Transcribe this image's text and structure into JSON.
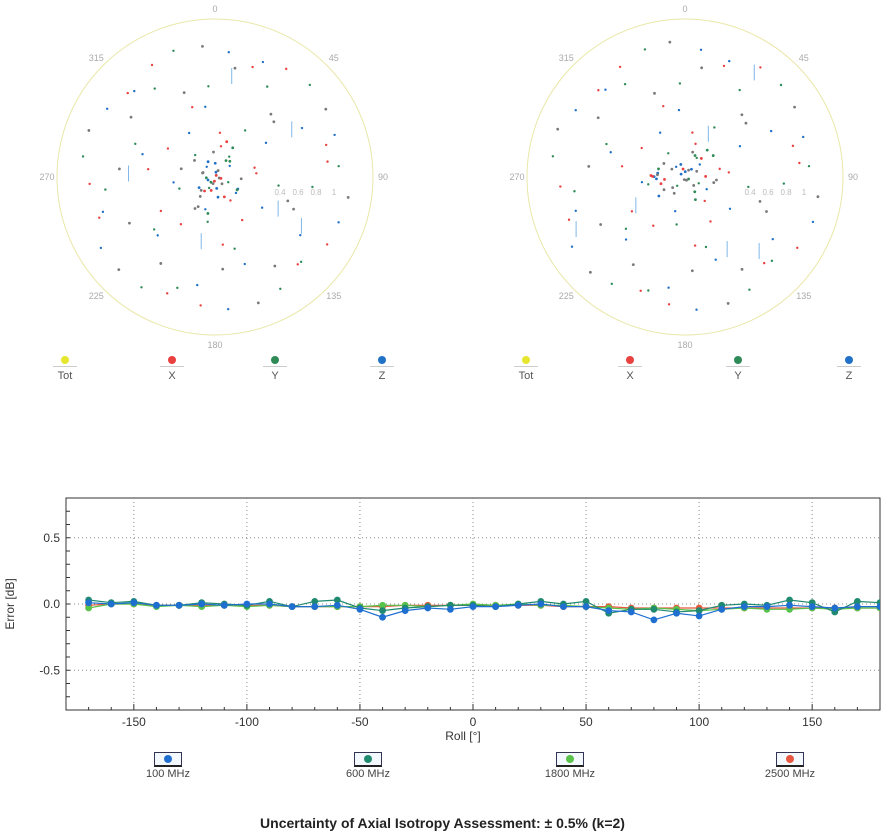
{
  "polar_left": {
    "angle_labels": [
      "0",
      "45",
      "90",
      "135",
      "180",
      "225",
      "270",
      "315"
    ],
    "radial_labels": [
      "0.4",
      "0.6",
      "0.8",
      "1"
    ]
  },
  "polar_right": {
    "angle_labels": [
      "0",
      "45",
      "90",
      "135",
      "180",
      "225",
      "270",
      "315"
    ],
    "radial_labels": [
      "0.4",
      "0.6",
      "0.8",
      "1"
    ]
  },
  "polar_legend": [
    {
      "label": "Tot",
      "color": "#e6e62e"
    },
    {
      "label": "X",
      "color": "#e8413f"
    },
    {
      "label": "Y",
      "color": "#2e8b57"
    },
    {
      "label": "Z",
      "color": "#2171c7"
    }
  ],
  "chart_data": {
    "type": "line",
    "xlabel": "Roll [°]",
    "ylabel": "Error [dB]",
    "xlim": [
      -180,
      180
    ],
    "ylim": [
      -0.8,
      0.8
    ],
    "xticks": [
      -150,
      -100,
      -50,
      0,
      50,
      100,
      150
    ],
    "yticks": [
      0.5,
      0.0,
      -0.5
    ],
    "ytick_labels": [
      "0.5",
      "0.0",
      "-0.5"
    ],
    "grid": true,
    "x": [
      -170,
      -160,
      -150,
      -140,
      -130,
      -120,
      -110,
      -100,
      -90,
      -80,
      -70,
      -60,
      -50,
      -40,
      -30,
      -20,
      -10,
      0,
      10,
      20,
      30,
      40,
      50,
      60,
      70,
      80,
      90,
      100,
      110,
      120,
      130,
      140,
      150,
      160,
      170,
      180
    ],
    "series": [
      {
        "name": "100 MHz",
        "color": "#1f6fd1",
        "values": [
          0.01,
          0.0,
          0.01,
          -0.01,
          -0.01,
          0.0,
          -0.01,
          0.0,
          0.0,
          -0.02,
          -0.02,
          -0.01,
          -0.04,
          -0.1,
          -0.05,
          -0.03,
          -0.04,
          -0.02,
          -0.02,
          -0.01,
          0.0,
          -0.02,
          -0.02,
          -0.05,
          -0.06,
          -0.12,
          -0.07,
          -0.09,
          -0.04,
          -0.02,
          -0.02,
          -0.01,
          -0.02,
          -0.03,
          -0.02,
          -0.02
        ]
      },
      {
        "name": "600 MHz",
        "color": "#1f8a6f",
        "values": [
          0.03,
          0.01,
          0.02,
          -0.01,
          -0.01,
          0.01,
          0.0,
          -0.01,
          0.02,
          -0.02,
          0.02,
          0.03,
          -0.03,
          -0.05,
          -0.03,
          -0.02,
          -0.01,
          -0.01,
          -0.02,
          0.0,
          0.02,
          0.0,
          0.02,
          -0.07,
          -0.04,
          -0.04,
          -0.06,
          -0.05,
          -0.01,
          0.0,
          -0.01,
          0.03,
          0.01,
          -0.06,
          0.02,
          0.01
        ]
      },
      {
        "name": "1800 MHz",
        "color": "#59c24a",
        "values": [
          -0.03,
          0.0,
          0.0,
          -0.02,
          -0.01,
          -0.02,
          -0.01,
          -0.02,
          -0.01,
          -0.02,
          -0.02,
          -0.02,
          -0.02,
          -0.01,
          -0.01,
          -0.02,
          -0.01,
          0.0,
          -0.01,
          0.0,
          -0.01,
          -0.01,
          -0.02,
          -0.03,
          -0.04,
          -0.03,
          -0.04,
          -0.05,
          -0.04,
          -0.03,
          -0.04,
          -0.04,
          -0.03,
          -0.04,
          -0.03,
          -0.03
        ]
      },
      {
        "name": "2500 MHz",
        "color": "#e8573f",
        "values": [
          -0.01,
          0.0,
          0.0,
          -0.01,
          -0.01,
          -0.01,
          -0.01,
          -0.01,
          -0.01,
          -0.02,
          -0.02,
          -0.02,
          -0.02,
          -0.02,
          -0.01,
          -0.01,
          -0.01,
          -0.01,
          -0.01,
          -0.01,
          -0.01,
          -0.02,
          -0.02,
          -0.02,
          -0.03,
          -0.03,
          -0.03,
          -0.03,
          -0.03,
          -0.03,
          -0.03,
          -0.03,
          -0.03,
          -0.03,
          -0.03,
          -0.03
        ]
      }
    ]
  },
  "footer": {
    "text": "Uncertainty of Axial Isotropy Assessment: ± 0.5% (k=2)"
  }
}
